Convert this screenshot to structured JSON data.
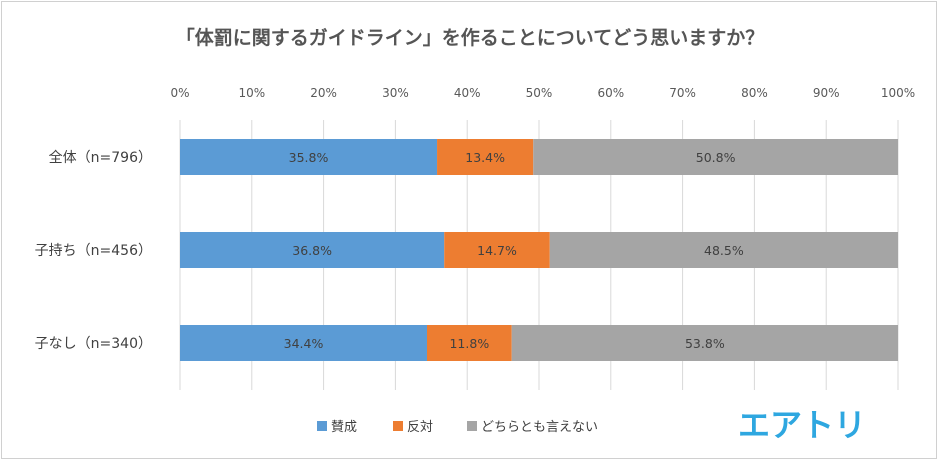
{
  "chart_data": {
    "type": "bar",
    "orientation": "horizontal",
    "stacked": true,
    "percent": true,
    "title": "「体罰に関するガイドライン」を作ることについてどう思いますか？",
    "categories": [
      "全体（n=796）",
      "子持ち（n=456）",
      "子なし（n=340）"
    ],
    "series": [
      {
        "name": "賛成",
        "color": "#5b9bd5",
        "values": [
          35.8,
          36.8,
          34.4
        ]
      },
      {
        "name": "反対",
        "color": "#ed7d31",
        "values": [
          13.4,
          14.7,
          11.8
        ]
      },
      {
        "name": "どちらとも言えない",
        "color": "#a5a5a5",
        "values": [
          50.8,
          48.5,
          53.8
        ]
      }
    ],
    "xlim": [
      0,
      100
    ],
    "xticks": [
      "0%",
      "10%",
      "20%",
      "30%",
      "40%",
      "50%",
      "60%",
      "70%",
      "80%",
      "90%",
      "100%"
    ],
    "xlabel": "",
    "ylabel": "",
    "grid": true,
    "legend": "bottom-center"
  },
  "logo_text": "エアトリ"
}
